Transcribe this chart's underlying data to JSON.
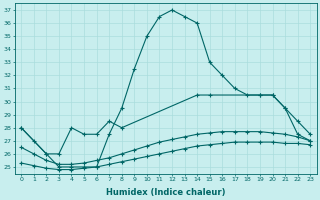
{
  "xlabel": "Humidex (Indice chaleur)",
  "bg_color": "#c8eeee",
  "line_color": "#006666",
  "grid_color": "#aadddd",
  "xlim": [
    -0.5,
    23.5
  ],
  "ylim": [
    24.5,
    37.5
  ],
  "yticks": [
    25,
    26,
    27,
    28,
    29,
    30,
    31,
    32,
    33,
    34,
    35,
    36,
    37
  ],
  "xticks": [
    0,
    1,
    2,
    3,
    4,
    5,
    6,
    7,
    8,
    9,
    10,
    11,
    12,
    13,
    14,
    15,
    16,
    17,
    18,
    19,
    20,
    21,
    22,
    23
  ],
  "curve1_x": [
    0,
    1,
    2,
    3,
    4,
    5,
    6,
    7,
    8,
    9,
    10,
    11,
    12,
    13,
    14,
    15,
    16,
    17,
    18,
    19,
    20,
    21,
    22,
    23
  ],
  "curve1_y": [
    28.0,
    27.0,
    26.0,
    25.0,
    25.0,
    25.0,
    25.0,
    27.5,
    29.5,
    32.5,
    35.0,
    36.5,
    37.0,
    36.5,
    36.0,
    33.0,
    32.0,
    31.0,
    30.5,
    30.5,
    30.5,
    29.5,
    27.5,
    27.0
  ],
  "curve2_x": [
    0,
    2,
    3,
    4,
    5,
    6,
    7,
    8,
    14,
    15,
    19,
    20,
    21,
    22,
    23
  ],
  "curve2_y": [
    28.0,
    26.0,
    26.0,
    28.0,
    27.5,
    27.5,
    28.5,
    28.0,
    30.5,
    30.5,
    30.5,
    30.5,
    29.5,
    28.5,
    27.5
  ],
  "curve3_x": [
    0,
    1,
    2,
    3,
    4,
    5,
    6,
    7,
    8,
    9,
    10,
    11,
    12,
    13,
    14,
    15,
    16,
    17,
    18,
    19,
    20,
    21,
    22,
    23
  ],
  "curve3_y": [
    26.5,
    26.0,
    25.5,
    25.2,
    25.2,
    25.3,
    25.5,
    25.7,
    26.0,
    26.3,
    26.6,
    26.9,
    27.1,
    27.3,
    27.5,
    27.6,
    27.7,
    27.7,
    27.7,
    27.7,
    27.6,
    27.5,
    27.3,
    27.0
  ],
  "curve4_x": [
    0,
    1,
    2,
    3,
    4,
    5,
    6,
    7,
    8,
    9,
    10,
    11,
    12,
    13,
    14,
    15,
    16,
    17,
    18,
    19,
    20,
    21,
    22,
    23
  ],
  "curve4_y": [
    25.3,
    25.1,
    24.9,
    24.8,
    24.8,
    24.9,
    25.0,
    25.2,
    25.4,
    25.6,
    25.8,
    26.0,
    26.2,
    26.4,
    26.6,
    26.7,
    26.8,
    26.9,
    26.9,
    26.9,
    26.9,
    26.8,
    26.8,
    26.7
  ]
}
